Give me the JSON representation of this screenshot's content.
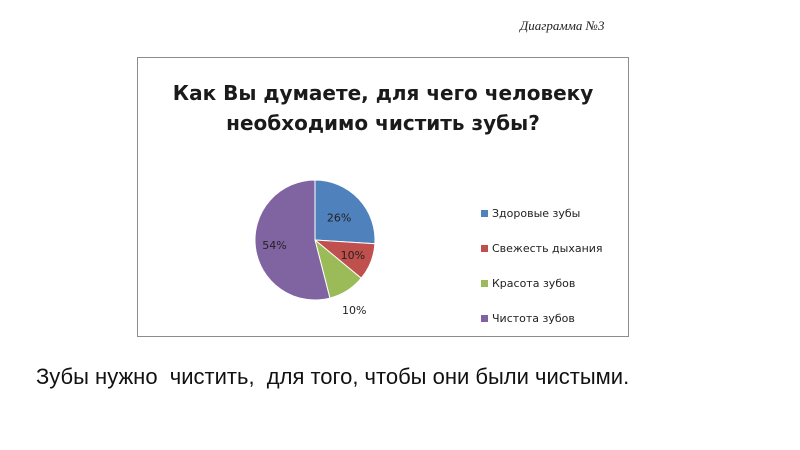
{
  "header": {
    "diagram_label": "Диаграмма №3"
  },
  "caption": "Зубы нужно  чистить,  для того, чтобы они были чистыми.",
  "chart_data": {
    "type": "pie",
    "title_lines": [
      "Как Вы думаете, для чего человеку",
      "необходимо чистить зубы?"
    ],
    "categories": [
      "Здоровые зубы",
      "Свежесть дыхания",
      "Красота зубов",
      "Чистота зубов"
    ],
    "values": [
      26,
      10,
      10,
      54
    ],
    "labels": [
      "26%",
      "10%",
      "10%",
      "54%"
    ],
    "colors": [
      "#4f81bd",
      "#c0504d",
      "#9bbb59",
      "#8064a2"
    ],
    "legend_position": "right"
  }
}
